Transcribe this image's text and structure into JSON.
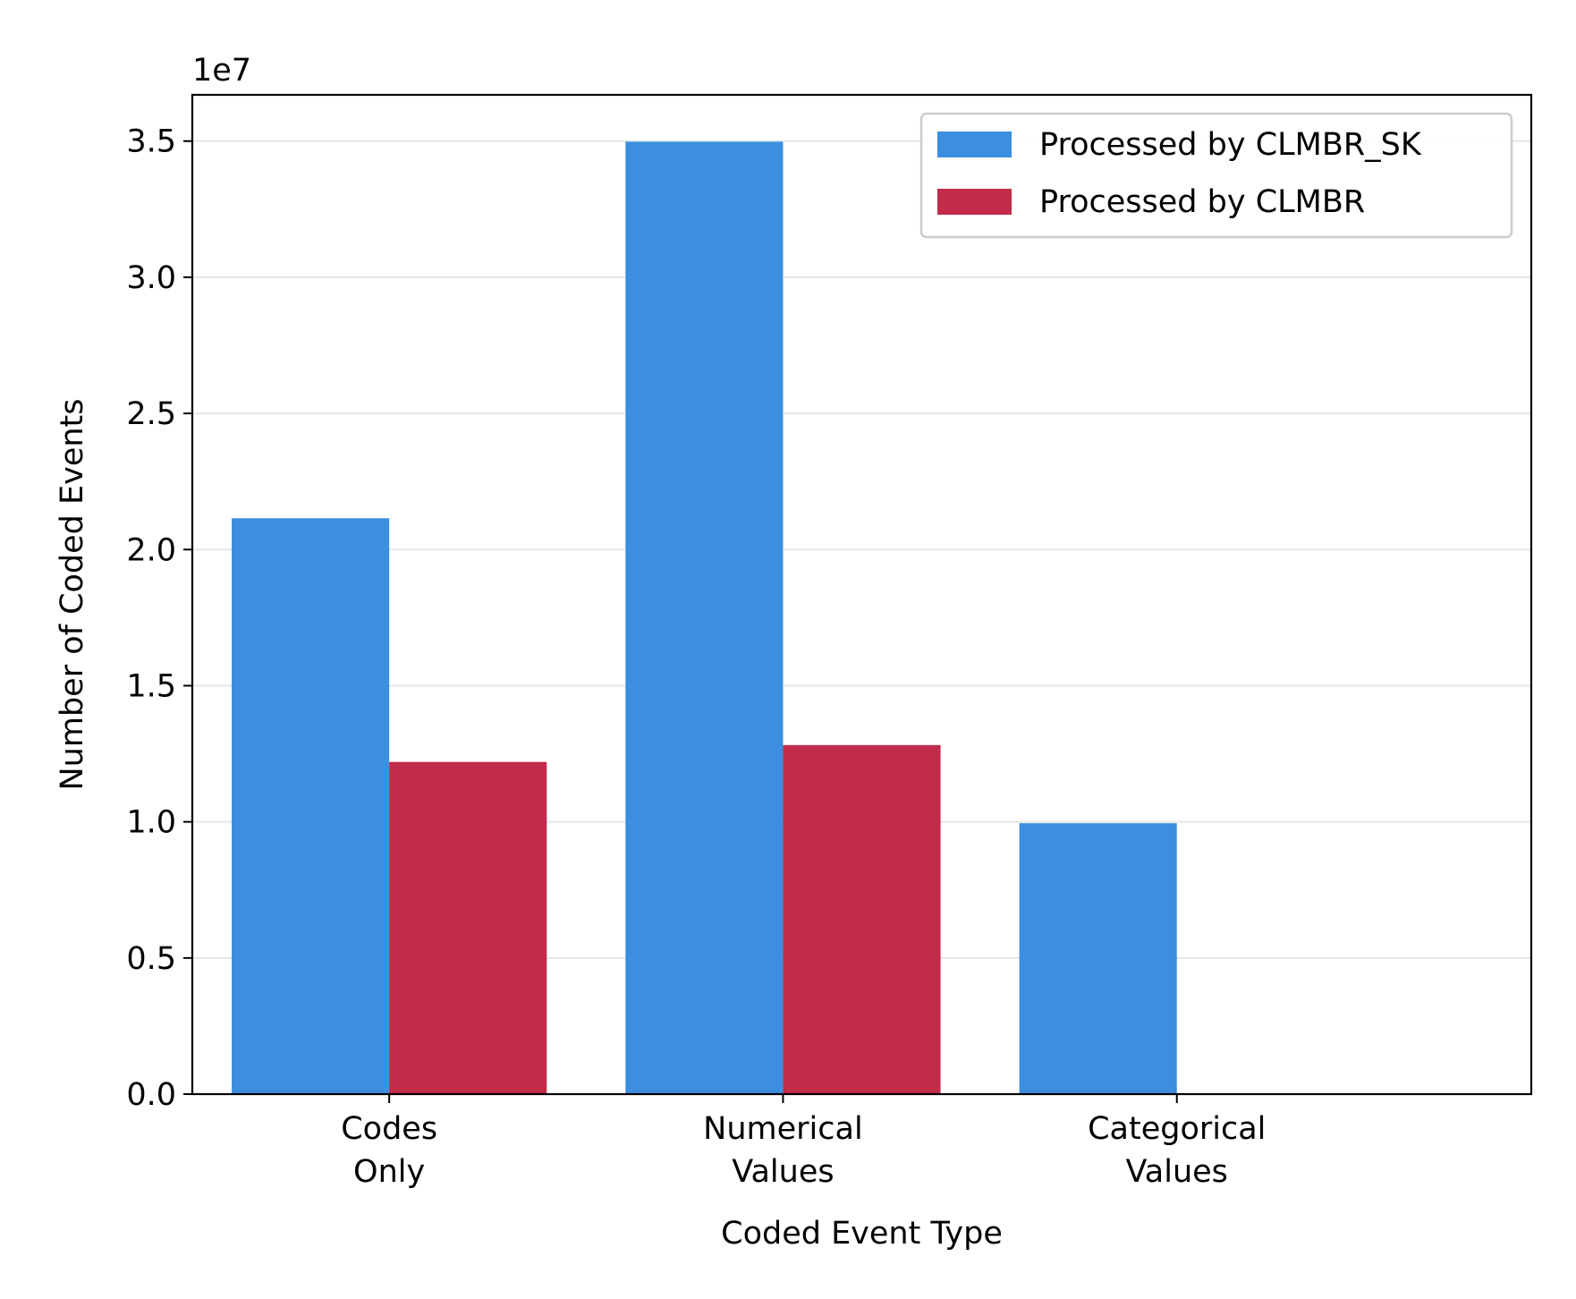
{
  "chart_data": {
    "type": "bar",
    "title": "",
    "xlabel": "Coded Event Type",
    "ylabel": "Number of Coded Events",
    "offset_label": "1e7",
    "categories": [
      [
        "Codes",
        "Only"
      ],
      [
        "Numerical",
        "Values"
      ],
      [
        "Categorical",
        "Values"
      ]
    ],
    "series": [
      {
        "name": "Processed by CLMBR_SK",
        "color": "#3b8ee0",
        "values": [
          21150000,
          34980000,
          9950000
        ]
      },
      {
        "name": "Processed by CLMBR",
        "color": "#c22b4a",
        "values": [
          12200000,
          12820000,
          0
        ]
      }
    ],
    "ylim": [
      0,
      36700000
    ],
    "yticks": [
      0,
      5000000,
      10000000,
      15000000,
      20000000,
      25000000,
      30000000,
      35000000
    ],
    "ytick_labels": [
      "0.0",
      "0.5",
      "1.0",
      "1.5",
      "2.0",
      "2.5",
      "3.0",
      "3.5"
    ],
    "grid": "horizontal",
    "legend_position": "top-right"
  }
}
